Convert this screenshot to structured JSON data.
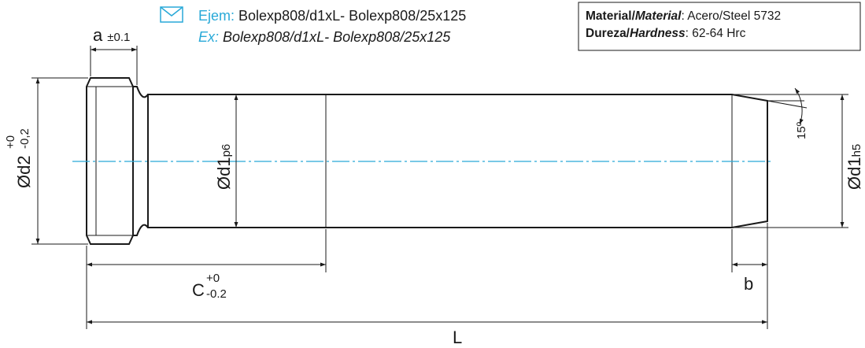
{
  "header": {
    "order_label_es": "Ejem:",
    "order_code_es": "Bolexp808/d1xL- Bolexp808/25x125",
    "order_label_en": "Ex:",
    "order_code_en": "Bolexp808/d1xL- Bolexp808/25x125",
    "icon": "envelope-icon",
    "accent_color": "#29a9d8"
  },
  "material_box": {
    "material_label_es": "Material/",
    "material_label_en": "Material",
    "material_value": ": Acero/Steel 5732",
    "hardness_label_es": "Dureza/",
    "hardness_label_en": "Hardness",
    "hardness_value": ": 62-64 Hrc"
  },
  "dimensions": {
    "a_label": "a",
    "a_tol": "±0.1",
    "d2_label": "Ød2",
    "d2_tol_upper": "+0",
    "d2_tol_lower": "-0,2",
    "d1p6_label": "Ød1",
    "d1p6_fit": "p6",
    "d1h5_label": "Ød1",
    "d1h5_fit": "h5",
    "angle_label": "15º",
    "c_label": "C",
    "c_tol_upper": "+0",
    "c_tol_lower": "-0.2",
    "b_label": "b",
    "l_label": "L"
  }
}
